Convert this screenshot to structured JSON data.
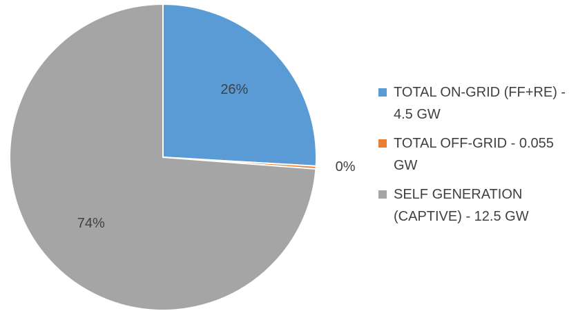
{
  "chart_data": {
    "type": "pie",
    "categories": [
      "TOTAL ON-GRID (FF+RE) - 4.5 GW",
      "TOTAL OFF-GRID - 0.055 GW",
      "SELF GENERATION (CAPTIVE) - 12.5 GW"
    ],
    "values": [
      26,
      0.3,
      74
    ],
    "value_labels": [
      "26%",
      "0%",
      "74%"
    ],
    "colors": [
      "#5b9bd5",
      "#ed7d31",
      "#a5a5a5"
    ],
    "legend": "right"
  }
}
